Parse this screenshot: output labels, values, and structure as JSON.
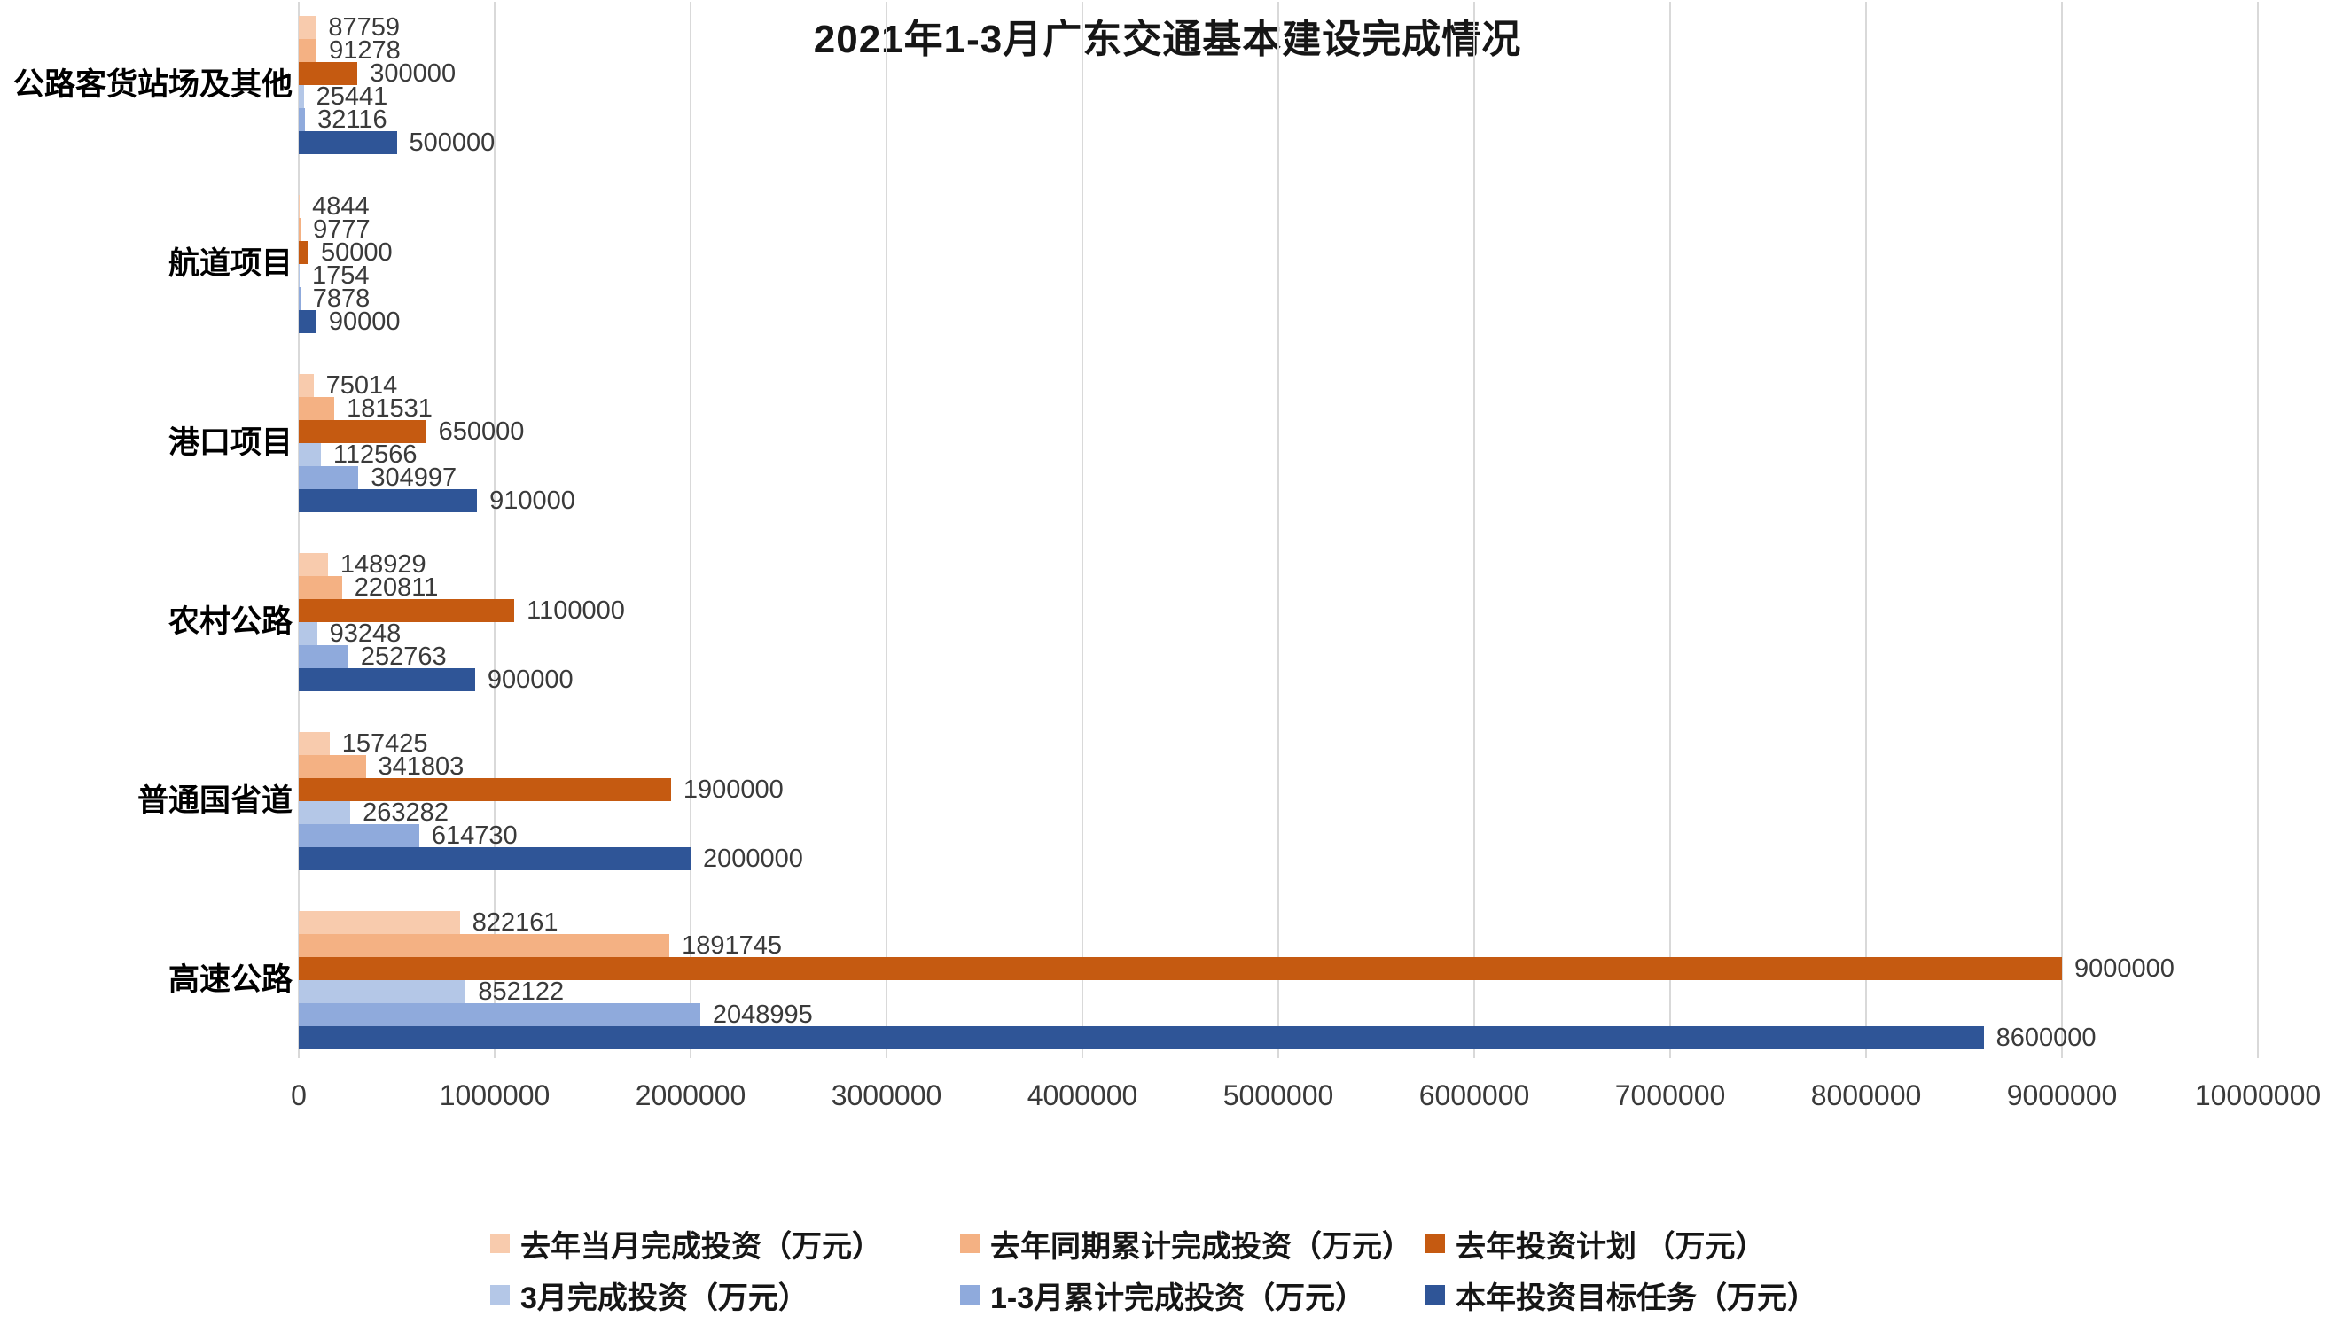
{
  "chart_data": {
    "type": "bar",
    "orientation": "horizontal",
    "title": "2021年1-3月广东交通基本建设完成情况",
    "categories": [
      "公路客货站场及其他",
      "航道项目",
      "港口项目",
      "农村公路",
      "普通国省道",
      "高速公路"
    ],
    "series": [
      {
        "name": "去年当月完成投资（万元）",
        "color": "#f8cbad",
        "values": [
          87759,
          4844,
          75014,
          148929,
          157425,
          822161
        ]
      },
      {
        "name": "去年同期累计完成投资（万元）",
        "color": "#f4b183",
        "values": [
          91278,
          9777,
          181531,
          220811,
          341803,
          1891745
        ]
      },
      {
        "name": "去年投资计划 （万元）",
        "color": "#c55a11",
        "values": [
          300000,
          50000,
          650000,
          1100000,
          1900000,
          9000000
        ]
      },
      {
        "name": "3月完成投资（万元）",
        "color": "#b4c7e7",
        "values": [
          25441,
          1754,
          112566,
          93248,
          263282,
          852122
        ]
      },
      {
        "name": "1-3月累计完成投资（万元）",
        "color": "#8faadc",
        "values": [
          32116,
          7878,
          304997,
          252763,
          614730,
          2048995
        ]
      },
      {
        "name": "本年投资目标任务（万元）",
        "color": "#2f5597",
        "values": [
          500000,
          90000,
          910000,
          900000,
          2000000,
          8600000
        ]
      }
    ],
    "value_labels": true,
    "xlim": [
      0,
      10000000
    ],
    "x_ticks": [
      {
        "value": 0,
        "label": "0"
      },
      {
        "value": 1000000,
        "label": "1000000"
      },
      {
        "value": 2000000,
        "label": "2000000"
      },
      {
        "value": 3000000,
        "label": "3000000"
      },
      {
        "value": 4000000,
        "label": "4000000"
      },
      {
        "value": 5000000,
        "label": "5000000"
      },
      {
        "value": 6000000,
        "label": "6000000"
      },
      {
        "value": 7000000,
        "label": "7000000"
      },
      {
        "value": 8000000,
        "label": "8000000"
      },
      {
        "value": 9000000,
        "label": "9000000"
      },
      {
        "value": 10000000,
        "label": "10000000"
      }
    ],
    "grid": true,
    "gridline_color": "#d9d9d9",
    "legend_position": "bottom"
  }
}
